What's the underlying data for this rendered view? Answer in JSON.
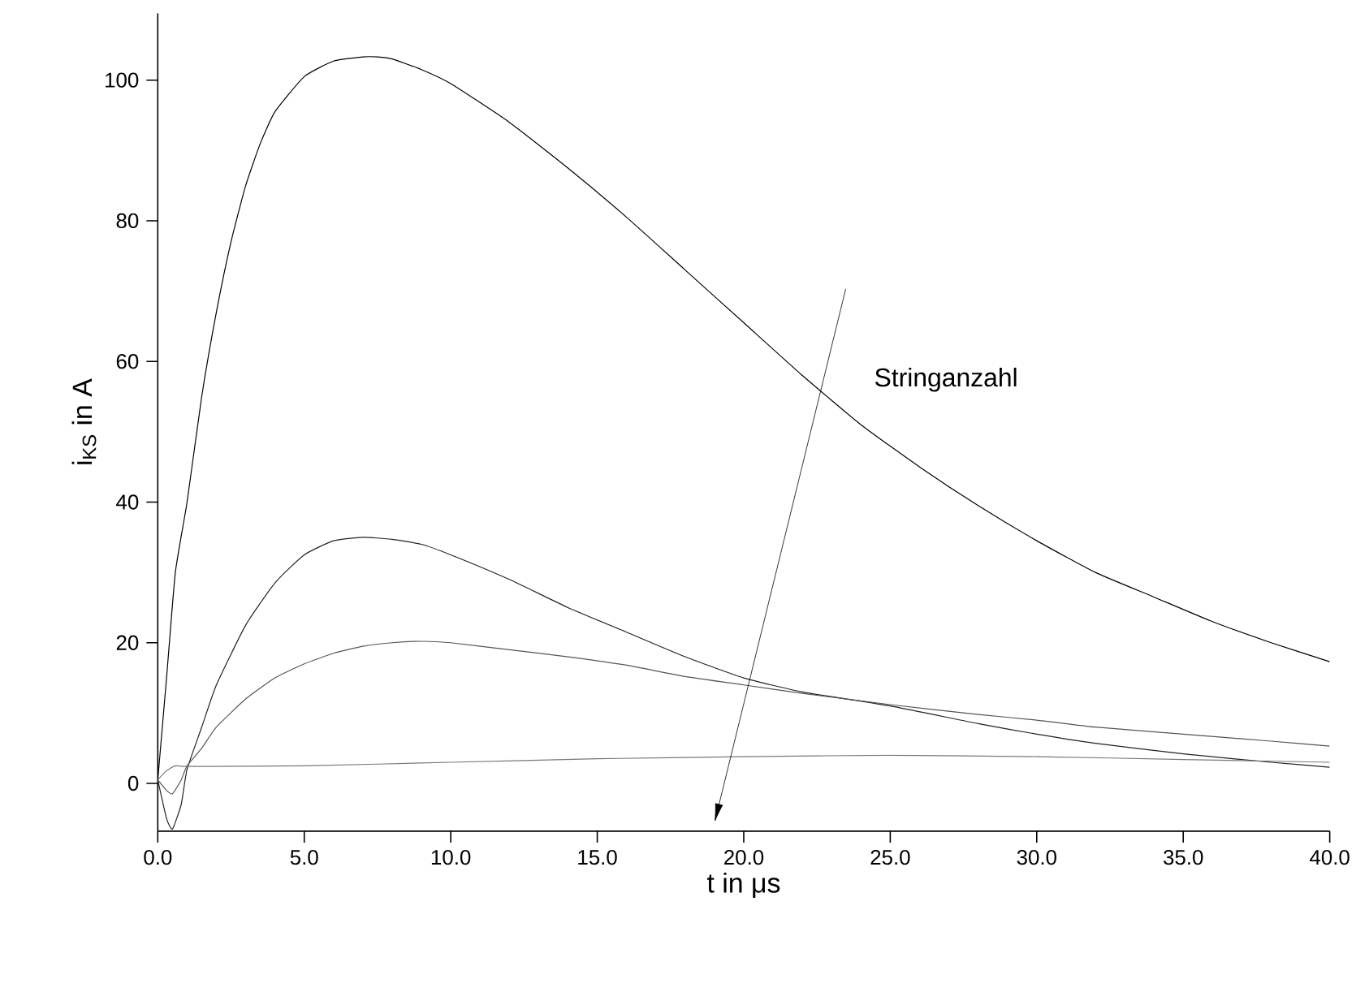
{
  "chart_data": {
    "type": "line",
    "xlabel": "t in μs",
    "ylabel": "i$_{KS}$ in A",
    "xlim": [
      0,
      40
    ],
    "ylim": [
      -6.8,
      109.5
    ],
    "xticks": [
      {
        "value": 0,
        "label": "0.0"
      },
      {
        "value": 5,
        "label": "5.0"
      },
      {
        "value": 10,
        "label": "10.0"
      },
      {
        "value": 15,
        "label": "15.0"
      },
      {
        "value": 20,
        "label": "20.0"
      },
      {
        "value": 25,
        "label": "25.0"
      },
      {
        "value": 30,
        "label": "30.0"
      },
      {
        "value": 35,
        "label": "35.0"
      },
      {
        "value": 40,
        "label": "40.0"
      }
    ],
    "yticks": [
      0,
      20,
      40,
      60,
      80,
      100
    ],
    "grid": false,
    "marker": "none",
    "line_style": "solid",
    "annotations": [
      "Stringanzahl"
    ],
    "series": [
      {
        "color": "#000000",
        "x": [
          0,
          0.3,
          0.6,
          1,
          1.5,
          2,
          2.5,
          3,
          3.5,
          4,
          5,
          6,
          7,
          7.5,
          8,
          9,
          10,
          12,
          14,
          16,
          18,
          20,
          22,
          24,
          26,
          28,
          30,
          32,
          34,
          36,
          38,
          40
        ],
        "values": [
          0.5,
          15,
          30,
          40,
          55,
          67,
          77,
          85,
          91,
          95.5,
          100.5,
          102.7,
          103.3,
          103.3,
          103,
          101.5,
          99.5,
          94,
          87.5,
          80.5,
          73,
          65.5,
          58,
          51,
          45,
          39.5,
          34.5,
          30,
          26.5,
          23,
          20,
          17.3
        ]
      },
      {
        "color": "#222222",
        "x": [
          0,
          0.3,
          0.5,
          0.8,
          1,
          1.5,
          2,
          3,
          4,
          5,
          6,
          7,
          8,
          9,
          10,
          12,
          14,
          16,
          18,
          20,
          22,
          25,
          28,
          30,
          32,
          35,
          38,
          40
        ],
        "values": [
          0.5,
          -5,
          -6.5,
          -3,
          2,
          8,
          14,
          22.5,
          28.5,
          32.5,
          34.5,
          35,
          34.7,
          34,
          32.5,
          29,
          25,
          21.5,
          18,
          15,
          13,
          11,
          8.5,
          7,
          5.7,
          4.2,
          3,
          2.3
        ]
      },
      {
        "color": "#555555",
        "x": [
          0,
          0.3,
          0.5,
          0.8,
          1,
          1.5,
          2,
          3,
          4,
          5,
          6,
          7,
          8,
          9,
          10,
          12,
          14,
          16,
          18,
          20,
          22,
          25,
          28,
          30,
          32,
          35,
          38,
          40
        ],
        "values": [
          0.5,
          -1,
          -1.5,
          0.5,
          2.5,
          5,
          8,
          12,
          15,
          17,
          18.5,
          19.5,
          20,
          20.2,
          20,
          19,
          18,
          16.8,
          15.2,
          14,
          12.8,
          11.2,
          9.8,
          9,
          8,
          7,
          6,
          5.3
        ]
      },
      {
        "color": "#777777",
        "x": [
          0,
          0.3,
          0.6,
          1,
          5,
          10,
          15,
          20,
          25,
          30,
          35,
          40
        ],
        "values": [
          0.5,
          1.8,
          2.5,
          2.4,
          2.5,
          3,
          3.5,
          3.8,
          4,
          3.8,
          3.4,
          3
        ]
      }
    ]
  }
}
